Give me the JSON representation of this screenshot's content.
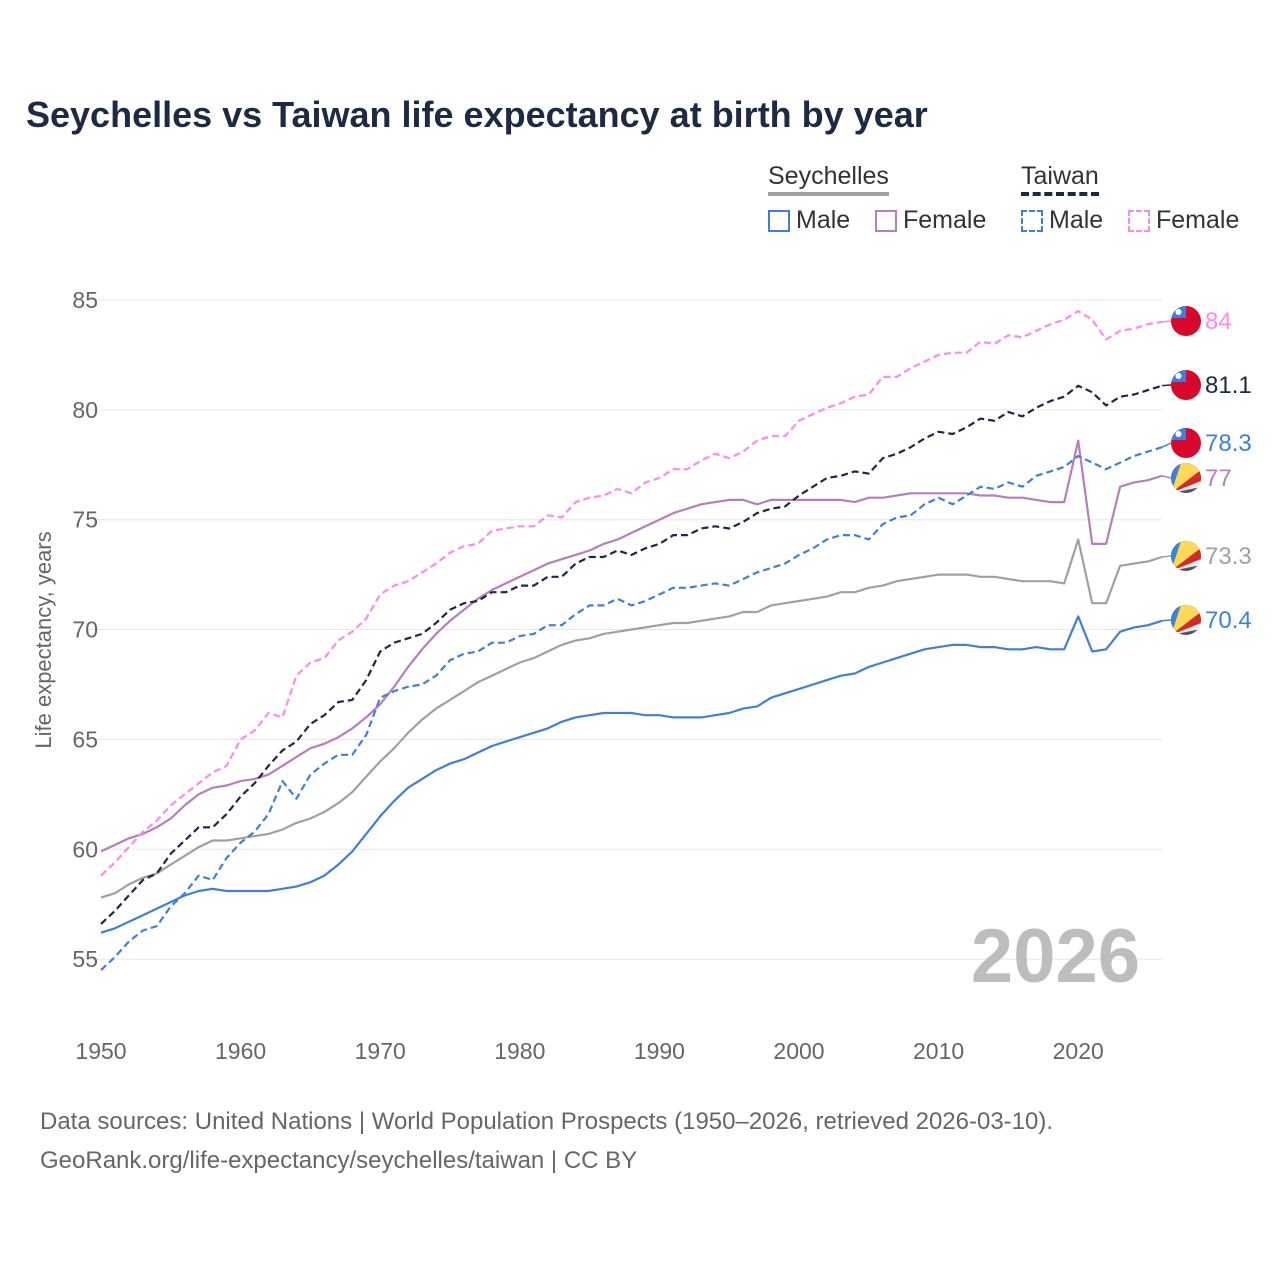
{
  "title": "Seychelles vs Taiwan life expectancy at birth by year",
  "legend": {
    "groups": [
      {
        "name": "Seychelles",
        "items": [
          "Male",
          "Female"
        ]
      },
      {
        "name": "Taiwan",
        "items": [
          "Male",
          "Female"
        ]
      }
    ]
  },
  "year_watermark": "2026",
  "footer": {
    "line1": "Data sources: United Nations | World Population Prospects (1950–2026, retrieved 2026-03-10).",
    "line2": "GeoRank.org/life-expectancy/seychelles/taiwan | CC BY"
  },
  "colors": {
    "seychelles_male": "#3f7fdc",
    "seychelles_female": "#b87dbe",
    "seychelles_total": "#a0a0a0",
    "taiwan_total": "#1b2a44",
    "taiwan_male": "#3f7fdc",
    "taiwan_female": "#ff88ee",
    "title": "#1c2a44"
  },
  "chart_data": {
    "type": "line",
    "title": "Seychelles vs Taiwan life expectancy at birth by year",
    "xlabel": "",
    "ylabel": "Life expectancy, years",
    "xlim": [
      1950,
      2026
    ],
    "ylim": [
      53,
      86
    ],
    "x_ticks": [
      1950,
      1960,
      1970,
      1980,
      1990,
      2000,
      2010,
      2020
    ],
    "y_ticks": [
      55,
      60,
      65,
      70,
      75,
      80,
      85
    ],
    "x_start": 1950,
    "series": [
      {
        "name": "Seychelles Male",
        "country": "Seychelles",
        "dash": false,
        "color": "#3f7fdc",
        "end_label": "70.4",
        "values": [
          56.2,
          56.4,
          56.7,
          57.0,
          57.3,
          57.6,
          57.9,
          58.1,
          58.2,
          58.1,
          58.1,
          58.1,
          58.1,
          58.2,
          58.3,
          58.5,
          58.8,
          59.3,
          59.9,
          60.7,
          61.5,
          62.2,
          62.8,
          63.2,
          63.6,
          63.9,
          64.1,
          64.4,
          64.7,
          64.9,
          65.1,
          65.3,
          65.5,
          65.8,
          66.0,
          66.1,
          66.2,
          66.2,
          66.2,
          66.1,
          66.1,
          66.0,
          66.0,
          66.0,
          66.1,
          66.2,
          66.4,
          66.5,
          66.9,
          67.1,
          67.3,
          67.5,
          67.7,
          67.9,
          68.0,
          68.3,
          68.5,
          68.7,
          68.9,
          69.1,
          69.2,
          69.3,
          69.3,
          69.2,
          69.2,
          69.1,
          69.1,
          69.2,
          69.1,
          69.1,
          70.6,
          69.0,
          69.1,
          69.9,
          70.1,
          70.2,
          70.4
        ]
      },
      {
        "name": "Seychelles Female",
        "country": "Seychelles",
        "dash": false,
        "color": "#b87dbe",
        "end_label": "77",
        "values": [
          59.9,
          60.2,
          60.5,
          60.7,
          61.0,
          61.4,
          62.0,
          62.5,
          62.8,
          62.9,
          63.1,
          63.2,
          63.4,
          63.8,
          64.2,
          64.6,
          64.8,
          65.1,
          65.5,
          66.0,
          66.6,
          67.4,
          68.3,
          69.1,
          69.8,
          70.4,
          70.9,
          71.4,
          71.8,
          72.1,
          72.4,
          72.7,
          73.0,
          73.2,
          73.4,
          73.6,
          73.9,
          74.1,
          74.4,
          74.7,
          75.0,
          75.3,
          75.5,
          75.7,
          75.8,
          75.9,
          75.9,
          75.7,
          75.9,
          75.9,
          75.9,
          75.9,
          75.9,
          75.9,
          75.8,
          76.0,
          76.0,
          76.1,
          76.2,
          76.2,
          76.2,
          76.2,
          76.2,
          76.1,
          76.1,
          76.0,
          76.0,
          75.9,
          75.8,
          75.8,
          78.6,
          73.9,
          73.9,
          76.5,
          76.7,
          76.8,
          77.0
        ]
      },
      {
        "name": "Seychelles",
        "country": "Seychelles",
        "dash": false,
        "color": "#a0a0a0",
        "end_label": "73.3",
        "values": [
          57.8,
          58.0,
          58.4,
          58.7,
          58.9,
          59.3,
          59.7,
          60.1,
          60.4,
          60.4,
          60.5,
          60.6,
          60.7,
          60.9,
          61.2,
          61.4,
          61.7,
          62.1,
          62.6,
          63.3,
          64.0,
          64.6,
          65.3,
          65.9,
          66.4,
          66.8,
          67.2,
          67.6,
          67.9,
          68.2,
          68.5,
          68.7,
          69.0,
          69.3,
          69.5,
          69.6,
          69.8,
          69.9,
          70.0,
          70.1,
          70.2,
          70.3,
          70.3,
          70.4,
          70.5,
          70.6,
          70.8,
          70.8,
          71.1,
          71.2,
          71.3,
          71.4,
          71.5,
          71.7,
          71.7,
          71.9,
          72.0,
          72.2,
          72.3,
          72.4,
          72.5,
          72.5,
          72.5,
          72.4,
          72.4,
          72.3,
          72.2,
          72.2,
          72.2,
          72.1,
          74.1,
          71.2,
          71.2,
          72.9,
          73.0,
          73.1,
          73.3
        ]
      },
      {
        "name": "Taiwan",
        "country": "Taiwan",
        "dash": true,
        "color": "#1b2a44",
        "end_label": "81.1",
        "values": [
          56.6,
          57.2,
          57.9,
          58.6,
          58.9,
          59.8,
          60.4,
          61.0,
          61.0,
          61.6,
          62.4,
          63.0,
          63.8,
          64.5,
          64.9,
          65.7,
          66.1,
          66.7,
          66.8,
          67.7,
          69.0,
          69.4,
          69.6,
          69.8,
          70.3,
          70.9,
          71.2,
          71.3,
          71.7,
          71.7,
          72.0,
          72.0,
          72.4,
          72.4,
          73.0,
          73.3,
          73.3,
          73.6,
          73.4,
          73.7,
          73.9,
          74.3,
          74.3,
          74.6,
          74.7,
          74.6,
          74.9,
          75.3,
          75.5,
          75.6,
          76.1,
          76.5,
          76.9,
          77.0,
          77.2,
          77.1,
          77.8,
          78.0,
          78.3,
          78.7,
          79.0,
          78.9,
          79.2,
          79.6,
          79.5,
          79.9,
          79.7,
          80.1,
          80.4,
          80.6,
          81.1,
          80.8,
          80.2,
          80.6,
          80.7,
          80.9,
          81.1
        ]
      },
      {
        "name": "Taiwan Male",
        "country": "Taiwan",
        "dash": true,
        "color": "#3f7fdc",
        "end_label": "78.3",
        "values": [
          54.5,
          55.1,
          55.8,
          56.3,
          56.5,
          57.4,
          58.0,
          58.8,
          58.6,
          59.6,
          60.3,
          60.8,
          61.6,
          63.1,
          62.3,
          63.4,
          63.9,
          64.3,
          64.3,
          65.2,
          66.9,
          67.2,
          67.4,
          67.5,
          67.9,
          68.6,
          68.9,
          69.0,
          69.4,
          69.4,
          69.7,
          69.8,
          70.2,
          70.2,
          70.7,
          71.1,
          71.1,
          71.4,
          71.1,
          71.3,
          71.6,
          71.9,
          71.9,
          72.0,
          72.1,
          72.0,
          72.3,
          72.6,
          72.8,
          73.0,
          73.4,
          73.7,
          74.1,
          74.3,
          74.3,
          74.1,
          74.8,
          75.1,
          75.2,
          75.7,
          76.0,
          75.7,
          76.1,
          76.5,
          76.4,
          76.7,
          76.5,
          77.0,
          77.2,
          77.4,
          77.9,
          77.6,
          77.3,
          77.6,
          77.9,
          78.1,
          78.3
        ]
      },
      {
        "name": "Taiwan Female",
        "country": "Taiwan",
        "dash": true,
        "color": "#ff88ee",
        "end_label": "84",
        "values": [
          58.8,
          59.4,
          60.1,
          60.8,
          61.3,
          62.0,
          62.5,
          63.0,
          63.5,
          63.8,
          65.0,
          65.4,
          66.2,
          66.0,
          67.9,
          68.5,
          68.7,
          69.5,
          69.9,
          70.5,
          71.6,
          72.0,
          72.2,
          72.6,
          73.0,
          73.5,
          73.8,
          73.9,
          74.5,
          74.6,
          74.7,
          74.7,
          75.2,
          75.1,
          75.8,
          76.0,
          76.1,
          76.4,
          76.2,
          76.7,
          76.9,
          77.3,
          77.3,
          77.7,
          78.0,
          77.8,
          78.1,
          78.6,
          78.8,
          78.8,
          79.5,
          79.8,
          80.1,
          80.3,
          80.6,
          80.7,
          81.5,
          81.5,
          81.9,
          82.2,
          82.5,
          82.6,
          82.6,
          83.1,
          83.0,
          83.4,
          83.3,
          83.6,
          83.9,
          84.1,
          84.5,
          84.1,
          83.2,
          83.6,
          83.7,
          83.9,
          84.0
        ]
      }
    ]
  }
}
